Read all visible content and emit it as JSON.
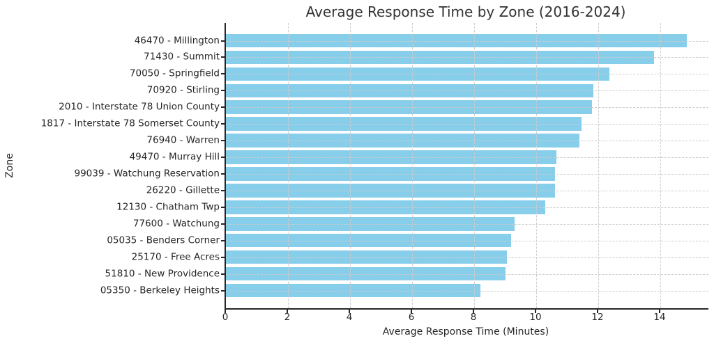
{
  "chart_data": {
    "type": "bar",
    "orientation": "horizontal",
    "title": "Average Response Time by Zone (2016-2024)",
    "xlabel": "Average Response Time (Minutes)",
    "ylabel": "Zone",
    "categories": [
      "46470 - Millington",
      "71430 - Summit",
      "70050 - Springfield",
      "70920 - Stirling",
      "2010 - Interstate 78 Union County",
      "1817 - Interstate 78 Somerset County",
      "76940 - Warren",
      "49470 - Murray Hill",
      "99039 - Watchung Reservation",
      "26220 - Gillette",
      "12130 - Chatham Twp",
      "77600 - Watchung",
      "05035 - Benders Corner",
      "25170 - Free Acres",
      "51810 - New Providence",
      "05350 - Berkeley Heights"
    ],
    "values": [
      14.85,
      13.8,
      12.35,
      11.85,
      11.8,
      11.45,
      11.4,
      10.65,
      10.6,
      10.6,
      10.3,
      9.3,
      9.2,
      9.05,
      9.0,
      8.2
    ],
    "xticks": [
      0,
      2,
      4,
      6,
      8,
      10,
      12,
      14
    ],
    "xlim": [
      0,
      15.55
    ],
    "bar_color": "#87CEEB",
    "grid_style": "dashed",
    "grid_color": "#cccccc",
    "axis_color": "#262626",
    "title_color": "#333333",
    "legend": "none"
  }
}
